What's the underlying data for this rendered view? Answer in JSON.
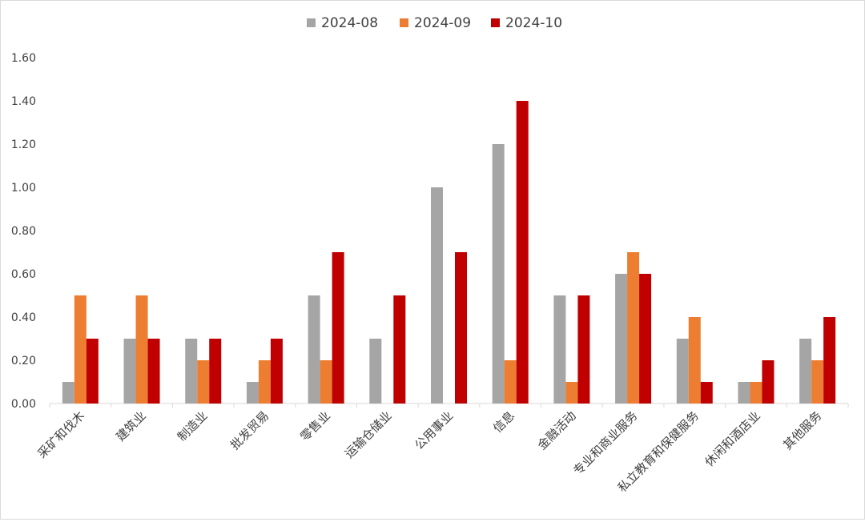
{
  "chart_data": {
    "type": "bar",
    "categories": [
      "采矿和伐木",
      "建筑业",
      "制造业",
      "批发贸易",
      "零售业",
      "运输仓储业",
      "公用事业",
      "信息",
      "金融活动",
      "专业和商业服务",
      "私立教育和保健服务",
      "休闲和酒店业",
      "其他服务"
    ],
    "series": [
      {
        "name": "2024-08",
        "color": "#a5a5a5",
        "values": [
          0.1,
          0.3,
          0.3,
          0.1,
          0.5,
          0.3,
          1.0,
          1.2,
          0.5,
          0.6,
          0.3,
          0.1,
          0.3
        ]
      },
      {
        "name": "2024-09",
        "color": "#ed7d31",
        "values": [
          0.5,
          0.5,
          0.2,
          0.2,
          0.2,
          0.0,
          0.0,
          0.2,
          0.1,
          0.7,
          0.4,
          0.1,
          0.2
        ]
      },
      {
        "name": "2024-10",
        "color": "#c00000",
        "values": [
          0.3,
          0.3,
          0.3,
          0.3,
          0.7,
          0.5,
          0.7,
          1.4,
          0.5,
          0.6,
          0.1,
          0.2,
          0.4
        ]
      }
    ],
    "ylim": [
      0,
      1.6
    ],
    "yticks": [
      "0.00",
      "0.20",
      "0.40",
      "0.60",
      "0.80",
      "1.00",
      "1.20",
      "1.40",
      "1.60"
    ],
    "title": "",
    "xlabel": "",
    "ylabel": "",
    "grid": false,
    "legend_position": "top-center"
  }
}
